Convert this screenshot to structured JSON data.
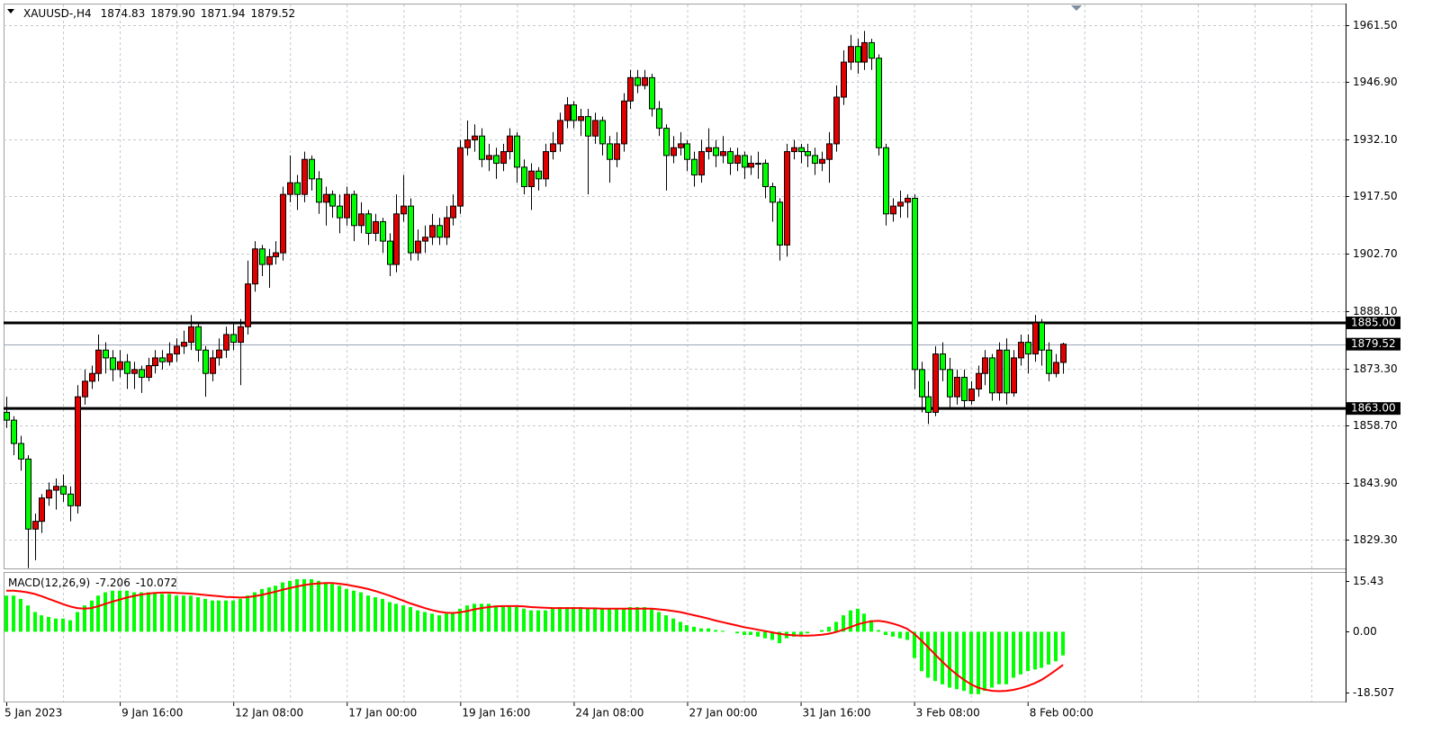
{
  "chart_data": {
    "type": "candlestick",
    "title": "XAUUSD-,H4",
    "last_high_label": "1879.90",
    "up_color": "#e00000",
    "down_color": "#00ff00",
    "grid": true,
    "categories": [
      "5 Jan 2023",
      null,
      null,
      null,
      null,
      null,
      null,
      null,
      null,
      null,
      null,
      null,
      null,
      null,
      null,
      null,
      "9 Jan 16:00",
      null,
      null,
      null,
      null,
      null,
      null,
      null,
      null,
      null,
      null,
      null,
      null,
      null,
      null,
      null,
      "12 Jan 08:00",
      null,
      null,
      null,
      null,
      null,
      null,
      null,
      null,
      null,
      null,
      null,
      null,
      null,
      null,
      null,
      "17 Jan 00:00",
      null,
      null,
      null,
      null,
      null,
      null,
      null,
      null,
      null,
      null,
      null,
      null,
      null,
      null,
      null,
      "19 Jan 16:00",
      null,
      null,
      null,
      null,
      null,
      null,
      null,
      null,
      null,
      null,
      null,
      null,
      null,
      null,
      null,
      "24 Jan 08:00",
      null,
      null,
      null,
      null,
      null,
      null,
      null,
      null,
      null,
      null,
      null,
      null,
      null,
      null,
      null,
      "27 Jan 00:00",
      null,
      null,
      null,
      null,
      null,
      null,
      null,
      null,
      null,
      null,
      null,
      null,
      null,
      null,
      null,
      "31 Jan 16:00",
      null,
      null,
      null,
      null,
      null,
      null,
      null,
      null,
      null,
      null,
      null,
      null,
      null,
      null,
      null,
      "3 Feb 08:00",
      null,
      null,
      null,
      null,
      null,
      null,
      null,
      null,
      null,
      null,
      null,
      null,
      null,
      null,
      null,
      "8 Feb 00:00",
      null,
      null,
      null,
      null,
      null
    ],
    "open": [
      1862,
      1860,
      1854,
      1850,
      1832,
      1834,
      1840,
      1842,
      1843,
      1841,
      1838,
      1866,
      1870,
      1872,
      1878,
      1876,
      1873,
      1875,
      1872,
      1873,
      1871,
      1874,
      1876,
      1875,
      1877,
      1879,
      1880,
      1884,
      1878,
      1872,
      1876,
      1878,
      1882,
      1880,
      1884,
      1895,
      1904,
      1900,
      1902,
      1903,
      1918,
      1921,
      1918,
      1927,
      1922,
      1916,
      1918,
      1915,
      1912,
      1918,
      1910,
      1913,
      1908,
      1911,
      1906,
      1900,
      1913,
      1915,
      1903,
      1906,
      1907,
      1910,
      1907,
      1912,
      1915,
      1930,
      1932,
      1933,
      1927,
      1928,
      1926,
      1929,
      1933,
      1925,
      1920,
      1924,
      1922,
      1929,
      1931,
      1937,
      1941,
      1937,
      1938,
      1933,
      1937,
      1931,
      1927,
      1931,
      1942,
      1948,
      1946,
      1948,
      1940,
      1935,
      1928,
      1930,
      1931,
      1927,
      1923,
      1929,
      1930,
      1928,
      1929,
      1926,
      1928,
      1925,
      1926,
      1926,
      1920,
      1916,
      1905,
      1929,
      1930,
      1929,
      1928,
      1926,
      1927,
      1931,
      1943,
      1952,
      1956,
      1952,
      1957,
      1953,
      1930,
      1913,
      1915,
      1916,
      1917,
      1873,
      1866,
      1862,
      1877,
      1873,
      1866,
      1871,
      1865,
      1868,
      1872,
      1876,
      1867,
      1878,
      1867,
      1876,
      1880,
      1877,
      1885,
      1878,
      1872,
      1874.83
    ],
    "high": [
      1866,
      1861,
      1856,
      1851,
      1836,
      1841,
      1844,
      1845,
      1846,
      1843,
      1869,
      1873,
      1874,
      1882,
      1880,
      1878,
      1878,
      1877,
      1875,
      1874,
      1876,
      1878,
      1878,
      1880,
      1881,
      1883,
      1887,
      1885,
      1879,
      1878,
      1881,
      1884,
      1885,
      1886,
      1901,
      1906,
      1905,
      1904,
      1906,
      1920,
      1928,
      1923,
      1929,
      1928,
      1924,
      1920,
      1919,
      1918,
      1920,
      1919,
      1916,
      1914,
      1913,
      1912,
      1908,
      1918,
      1923,
      1917,
      1909,
      1910,
      1913,
      1912,
      1915,
      1918,
      1932,
      1937,
      1936,
      1935,
      1931,
      1930,
      1931,
      1935,
      1934,
      1927,
      1926,
      1925,
      1931,
      1934,
      1939,
      1943,
      1942,
      1940,
      1940,
      1939,
      1938,
      1933,
      1934,
      1944,
      1950,
      1950,
      1950,
      1949,
      1942,
      1936,
      1933,
      1934,
      1932,
      1929,
      1932,
      1935,
      1932,
      1933,
      1930,
      1930,
      1929,
      1928,
      1929,
      1927,
      1921,
      1917,
      1931,
      1932,
      1931,
      1931,
      1930,
      1929,
      1934,
      1946,
      1955,
      1959,
      1958,
      1960,
      1958,
      1954,
      1931,
      1917,
      1919,
      1918,
      1918,
      1875,
      1870,
      1879,
      1880,
      1876,
      1873,
      1873,
      1870,
      1874,
      1878,
      1877,
      1880,
      1881,
      1878,
      1882,
      1882,
      1887,
      1886,
      1880,
      1877,
      1879.9
    ],
    "low": [
      1858,
      1851,
      1847,
      1822,
      1824,
      1831,
      1838,
      1837,
      1839,
      1834,
      1836,
      1864,
      1868,
      1870,
      1872,
      1870,
      1871,
      1868,
      1868,
      1867,
      1870,
      1872,
      1873,
      1874,
      1875,
      1877,
      1878,
      1875,
      1866,
      1870,
      1874,
      1876,
      1878,
      1869,
      1882,
      1893,
      1897,
      1894,
      1900,
      1901,
      1916,
      1914,
      1916,
      1919,
      1913,
      1910,
      1912,
      1908,
      1910,
      1906,
      1908,
      1905,
      1906,
      1903,
      1897,
      1898,
      1911,
      1901,
      1901,
      1903,
      1905,
      1905,
      1905,
      1910,
      1913,
      1928,
      1929,
      1925,
      1924,
      1922,
      1924,
      1927,
      1921,
      1918,
      1914,
      1919,
      1920,
      1927,
      1929,
      1935,
      1935,
      1933,
      1918,
      1931,
      1928,
      1921,
      1925,
      1929,
      1940,
      1944,
      1945,
      1938,
      1933,
      1919,
      1926,
      1928,
      1924,
      1920,
      1921,
      1927,
      1925,
      1926,
      1923,
      1924,
      1922,
      1923,
      1922,
      1917,
      1911,
      1901,
      1902,
      1927,
      1926,
      1925,
      1923,
      1924,
      1921,
      1929,
      1941,
      1950,
      1949,
      1950,
      1950,
      1928,
      1910,
      1911,
      1912,
      1912,
      1868,
      1862,
      1859,
      1861,
      1870,
      1863,
      1864,
      1863,
      1864,
      1866,
      1869,
      1865,
      1865,
      1864,
      1866,
      1874,
      1872,
      1875,
      1874,
      1870,
      1871,
      1871.94
    ],
    "close": [
      1860,
      1854,
      1850,
      1832,
      1834,
      1840,
      1842,
      1843,
      1841,
      1838,
      1866,
      1870,
      1872,
      1878,
      1876,
      1873,
      1875,
      1872,
      1873,
      1871,
      1874,
      1876,
      1875,
      1877,
      1879,
      1880,
      1884,
      1878,
      1872,
      1876,
      1878,
      1882,
      1880,
      1884,
      1895,
      1904,
      1900,
      1902,
      1903,
      1918,
      1921,
      1918,
      1927,
      1922,
      1916,
      1918,
      1915,
      1912,
      1918,
      1910,
      1913,
      1908,
      1911,
      1906,
      1900,
      1913,
      1915,
      1903,
      1906,
      1907,
      1910,
      1907,
      1912,
      1915,
      1930,
      1932,
      1933,
      1927,
      1928,
      1926,
      1929,
      1933,
      1925,
      1920,
      1924,
      1922,
      1929,
      1931,
      1937,
      1941,
      1937,
      1938,
      1933,
      1937,
      1931,
      1927,
      1931,
      1942,
      1948,
      1946,
      1948,
      1940,
      1935,
      1928,
      1930,
      1931,
      1927,
      1923,
      1929,
      1930,
      1928,
      1929,
      1926,
      1928,
      1925,
      1926,
      1926,
      1920,
      1916,
      1905,
      1929,
      1930,
      1929,
      1928,
      1926,
      1927,
      1931,
      1943,
      1952,
      1956,
      1952,
      1957,
      1953,
      1930,
      1913,
      1915,
      1916,
      1917,
      1873,
      1866,
      1862,
      1877,
      1873,
      1866,
      1871,
      1865,
      1868,
      1872,
      1876,
      1867,
      1878,
      1867,
      1876,
      1880,
      1877,
      1885,
      1878,
      1872,
      1874.83,
      1879.52
    ],
    "ylim": [
      1821.9,
      1966.8
    ],
    "yticks": [
      {
        "value": 1961.5,
        "label": "1961.50"
      },
      {
        "value": 1946.9,
        "label": "1946.90"
      },
      {
        "value": 1932.1,
        "label": "1932.10"
      },
      {
        "value": 1917.5,
        "label": "1917.50"
      },
      {
        "value": 1902.7,
        "label": "1902.70"
      },
      {
        "value": 1888.1,
        "label": "1888.10"
      },
      {
        "value": 1873.3,
        "label": "1873.30"
      },
      {
        "value": 1858.7,
        "label": "1858.70"
      },
      {
        "value": 1843.9,
        "label": "1843.90"
      },
      {
        "value": 1829.3,
        "label": "1829.30"
      }
    ],
    "levels": [
      {
        "value": 1885,
        "label": "1885.00"
      },
      {
        "value": 1863,
        "label": "1863.00"
      }
    ],
    "current": {
      "value": 1879.52,
      "label": "1879.52"
    },
    "macd": {
      "label": "MACD(12,26,9)",
      "histogram_color": "#00ff00",
      "signal_color": "#ff0000",
      "histogram": [
        11,
        11,
        10,
        8,
        6,
        5,
        4.5,
        4,
        4,
        3.5,
        6,
        8,
        9.5,
        11,
        12,
        12.5,
        12.5,
        12.5,
        12,
        12,
        12,
        12,
        11.5,
        11.5,
        11,
        11,
        11,
        10.5,
        10,
        9.5,
        9.5,
        9.5,
        9.5,
        10,
        11,
        12,
        13,
        13.5,
        14,
        15,
        15.5,
        16,
        16,
        16,
        15.5,
        15,
        14.5,
        14,
        13,
        12.5,
        12,
        11,
        10.5,
        10,
        9,
        8.5,
        8,
        7.5,
        6.5,
        6,
        5.5,
        5,
        5.5,
        6,
        7,
        8,
        8.5,
        8.5,
        8.5,
        8,
        8,
        8,
        7.5,
        7,
        6.5,
        6.5,
        6.5,
        7,
        7.5,
        7.5,
        7.5,
        7.5,
        7,
        7,
        7,
        7,
        7,
        7,
        7.5,
        7.5,
        7.5,
        7,
        6,
        5,
        4,
        3,
        2,
        1.5,
        1,
        1,
        0.5,
        0.3,
        0,
        -0.5,
        -1,
        -1,
        -1.5,
        -2,
        -2.5,
        -3.5,
        -2,
        -1.5,
        -1,
        -0.5,
        0,
        0.5,
        1.5,
        3,
        5,
        6.5,
        7,
        5.5,
        3.5,
        0.5,
        -1,
        -1.5,
        -2,
        -2.5,
        -8,
        -12,
        -14,
        -15,
        -16,
        -17,
        -17.5,
        -18,
        -19,
        -19,
        -18,
        -17,
        -16,
        -16,
        -14,
        -13,
        -12,
        -11.5,
        -11,
        -10,
        -9,
        -7.206
      ],
      "signal": [
        12.5,
        12.5,
        12.3,
        12,
        11.5,
        10.8,
        10,
        9.2,
        8.4,
        7.7,
        7.2,
        7,
        7.2,
        7.8,
        8.5,
        9.2,
        9.8,
        10.4,
        10.9,
        11.3,
        11.6,
        11.8,
        11.9,
        11.9,
        11.8,
        11.7,
        11.6,
        11.4,
        11.2,
        11,
        10.8,
        10.6,
        10.5,
        10.4,
        10.5,
        10.8,
        11.2,
        11.7,
        12.2,
        12.8,
        13.3,
        13.8,
        14.2,
        14.5,
        14.7,
        14.8,
        14.8,
        14.6,
        14.3,
        13.9,
        13.5,
        13,
        12.4,
        11.7,
        11,
        10.2,
        9.4,
        8.6,
        7.9,
        7.2,
        6.6,
        6.1,
        5.8,
        5.7,
        5.9,
        6.3,
        6.8,
        7.2,
        7.5,
        7.7,
        7.8,
        7.8,
        7.8,
        7.7,
        7.5,
        7.4,
        7.3,
        7.2,
        7.2,
        7.2,
        7.2,
        7.2,
        7.1,
        7.1,
        7,
        7,
        7,
        7,
        7,
        7,
        7,
        7,
        6.8,
        6.6,
        6.3,
        6,
        5.5,
        5,
        4.5,
        4,
        3.4,
        2.9,
        2.4,
        1.9,
        1.4,
        1,
        0.6,
        0.2,
        -0.2,
        -0.6,
        -0.9,
        -1.1,
        -1.2,
        -1.2,
        -1.1,
        -0.9,
        -0.6,
        -0.1,
        0.6,
        1.4,
        2.2,
        2.8,
        3.2,
        3.3,
        3,
        2.5,
        1.8,
        0.9,
        -0.6,
        -2.6,
        -4.8,
        -7,
        -9.2,
        -11.2,
        -13,
        -14.6,
        -16,
        -17,
        -17.6,
        -18,
        -18.1,
        -18,
        -17.7,
        -17.2,
        -16.5,
        -15.7,
        -14.6,
        -13.2,
        -11.7,
        -10.072
      ],
      "ylim": [
        -21.25,
        17.9
      ],
      "yticks": [
        15.43,
        {
          "value": 0,
          "label": "0.00"
        },
        -18.507
      ]
    }
  }
}
